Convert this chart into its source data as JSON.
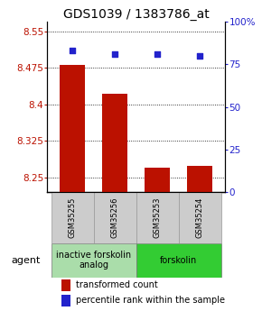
{
  "title": "GDS1039 / 1383786_at",
  "samples": [
    "GSM35255",
    "GSM35256",
    "GSM35253",
    "GSM35254"
  ],
  "bar_values": [
    8.481,
    8.422,
    8.271,
    8.273
  ],
  "percentile_values": [
    83,
    81,
    81,
    80
  ],
  "ylim_left": [
    8.22,
    8.57
  ],
  "ylim_right": [
    0,
    100
  ],
  "yticks_left": [
    8.25,
    8.325,
    8.4,
    8.475,
    8.55
  ],
  "ytick_labels_left": [
    "8.25",
    "8.325",
    "8.4",
    "8.475",
    "8.55"
  ],
  "yticks_right": [
    0,
    25,
    50,
    75,
    100
  ],
  "ytick_labels_right": [
    "0",
    "25",
    "50",
    "75",
    "100%"
  ],
  "bar_color": "#bb1100",
  "dot_color": "#2222cc",
  "bar_bottom": 8.22,
  "groups": [
    {
      "label": "inactive forskolin\nanalog",
      "indices": [
        0,
        1
      ],
      "color": "#aaddaa"
    },
    {
      "label": "forskolin",
      "indices": [
        2,
        3
      ],
      "color": "#33cc33"
    }
  ],
  "agent_label": "agent",
  "legend_bar_label": "transformed count",
  "legend_dot_label": "percentile rank within the sample",
  "title_fontsize": 10,
  "tick_fontsize": 7.5,
  "sample_fontsize": 6,
  "group_fontsize": 7,
  "legend_fontsize": 7
}
